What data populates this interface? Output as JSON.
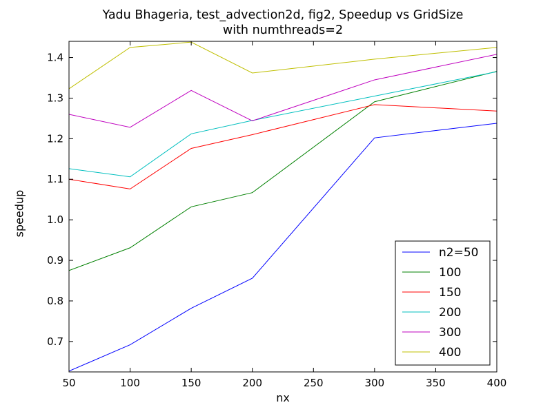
{
  "chart_data": {
    "type": "line",
    "title_line1": "Yadu Bhageria, test_advection2d, fig2, Speedup vs GridSize",
    "title_line2": "with numthreads=2",
    "xlabel": "nx",
    "ylabel": "speedup",
    "xlim": [
      50,
      400
    ],
    "ylim": [
      0.625,
      1.44
    ],
    "x_ticks": [
      50,
      100,
      150,
      200,
      250,
      300,
      350,
      400
    ],
    "y_ticks": [
      0.7,
      0.8,
      0.9,
      1.0,
      1.1,
      1.2,
      1.3,
      1.4
    ],
    "grid": false,
    "legend_position": "lower right",
    "x": [
      50,
      100,
      150,
      200,
      300,
      400
    ],
    "series": [
      {
        "name": "n2=50",
        "color": "#0000ff",
        "values": [
          0.627,
          0.692,
          0.782,
          0.856,
          1.202,
          1.238
        ]
      },
      {
        "name": "100",
        "color": "#008000",
        "values": [
          0.875,
          0.931,
          1.032,
          1.067,
          1.291,
          1.366
        ]
      },
      {
        "name": "150",
        "color": "#ff0000",
        "values": [
          1.1,
          1.076,
          1.176,
          1.21,
          1.284,
          1.268
        ]
      },
      {
        "name": "200",
        "color": "#00bfbf",
        "values": [
          1.126,
          1.106,
          1.212,
          1.245,
          1.305,
          1.365
        ]
      },
      {
        "name": "300",
        "color": "#bf00bf",
        "values": [
          1.26,
          1.228,
          1.319,
          1.244,
          1.345,
          1.408
        ]
      },
      {
        "name": "400",
        "color": "#bfbf00",
        "values": [
          1.323,
          1.425,
          1.438,
          1.362,
          1.396,
          1.425
        ]
      }
    ]
  }
}
